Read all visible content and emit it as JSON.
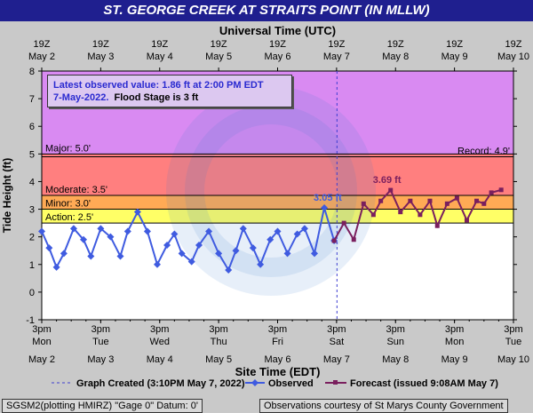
{
  "title": "ST. GEORGE CREEK AT STRAITS POINT (IN MLLW)",
  "top_axis_title": "Universal Time (UTC)",
  "bottom_axis_title": "Site Time (EDT)",
  "y_axis_title": "Tide Height (ft)",
  "info": {
    "line1": "Latest observed value: 1.86 ft at 2:00 PM EDT",
    "line2_a": "7-May-2022.",
    "line2_b": "Flood Stage is 3 ft"
  },
  "legend": {
    "created": "Graph Created (3:10PM May 7, 2022)",
    "observed": "Observed",
    "forecast": "Forecast (issued 9:08AM May 7)"
  },
  "footer": {
    "left": "SGSM2(plotting HMIRZ) \"Gage 0\" Datum: 0'",
    "right": "Observations courtesy of St Marys County Government"
  },
  "thresholds": [
    {
      "name": "Major",
      "label": "Major: 5.0'",
      "value": 5.0
    },
    {
      "name": "Record",
      "label": "Record: 4.9'",
      "value": 4.9
    },
    {
      "name": "Moderate",
      "label": "Moderate: 3.5'",
      "value": 3.5
    },
    {
      "name": "Minor",
      "label": "Minor: 3.0'",
      "value": 3.0
    },
    {
      "name": "Action",
      "label": "Action: 2.5'",
      "value": 2.5
    }
  ],
  "annotations": [
    {
      "text": "3.05 ft",
      "series": "Observed"
    },
    {
      "text": "3.69 ft",
      "series": "Forecast"
    }
  ],
  "colors": {
    "title_bg": "#1f1f8f",
    "major_band": "#d98af2",
    "moderate_band": "#ff7f7f",
    "minor_band": "#ffaa55",
    "action_band": "#ffff66",
    "normal_band": "#ffffff",
    "observed": "#3f5be0",
    "forecast": "#7a1f5e",
    "annotation_observed": "#3f5be0",
    "annotation_forecast": "#7a1f5e"
  },
  "chart_data": {
    "type": "line",
    "title": "ST. GEORGE CREEK AT STRAITS POINT (IN MLLW)",
    "xlabel": "Site Time (EDT)",
    "x2label": "Universal Time (UTC)",
    "ylabel": "Tide Height (ft)",
    "xlim": [
      "2022-05-02 15:00",
      "2022-05-10 15:00"
    ],
    "ylim": [
      -1,
      8
    ],
    "yticks": [
      -1,
      0,
      1,
      2,
      3,
      4,
      5,
      6,
      7,
      8
    ],
    "grid": false,
    "legend_position": "bottom",
    "bottom_ticks": [
      {
        "time": "3pm",
        "day": "Mon",
        "date": "May 2"
      },
      {
        "time": "3pm",
        "day": "Tue",
        "date": "May 3"
      },
      {
        "time": "3pm",
        "day": "Wed",
        "date": "May 4"
      },
      {
        "time": "3pm",
        "day": "Thu",
        "date": "May 5"
      },
      {
        "time": "3pm",
        "day": "Fri",
        "date": "May 6"
      },
      {
        "time": "3pm",
        "day": "Sat",
        "date": "May 7"
      },
      {
        "time": "3pm",
        "day": "Sun",
        "date": "May 8"
      },
      {
        "time": "3pm",
        "day": "Mon",
        "date": "May 9"
      },
      {
        "time": "3pm",
        "day": "Tue",
        "date": "May 10"
      }
    ],
    "top_ticks": [
      {
        "time": "19Z",
        "date": "May 2"
      },
      {
        "time": "19Z",
        "date": "May 3"
      },
      {
        "time": "19Z",
        "date": "May 4"
      },
      {
        "time": "19Z",
        "date": "May 5"
      },
      {
        "time": "19Z",
        "date": "May 6"
      },
      {
        "time": "19Z",
        "date": "May 7"
      },
      {
        "time": "19Z",
        "date": "May 8"
      },
      {
        "time": "19Z",
        "date": "May 9"
      },
      {
        "time": "19Z",
        "date": "May 10"
      }
    ],
    "created_marker": "2022-05-07 15:10",
    "series": [
      {
        "name": "Observed",
        "x": [
          "2022-05-02 15:00",
          "2022-05-02 18:00",
          "2022-05-02 21:00",
          "2022-05-03 00:00",
          "2022-05-03 04:00",
          "2022-05-03 08:00",
          "2022-05-03 11:00",
          "2022-05-03 15:00",
          "2022-05-03 19:00",
          "2022-05-03 23:00",
          "2022-05-04 02:00",
          "2022-05-04 06:00",
          "2022-05-04 10:00",
          "2022-05-04 14:00",
          "2022-05-04 18:00",
          "2022-05-04 21:00",
          "2022-05-05 00:00",
          "2022-05-05 04:00",
          "2022-05-05 07:00",
          "2022-05-05 11:00",
          "2022-05-05 15:00",
          "2022-05-05 19:00",
          "2022-05-05 22:00",
          "2022-05-06 01:00",
          "2022-05-06 05:00",
          "2022-05-06 08:00",
          "2022-05-06 12:00",
          "2022-05-06 15:00",
          "2022-05-06 19:00",
          "2022-05-06 23:00",
          "2022-05-07 02:00",
          "2022-05-07 06:00",
          "2022-05-07 10:00",
          "2022-05-07 14:00"
        ],
        "y": [
          2.2,
          1.6,
          0.9,
          1.4,
          2.3,
          1.9,
          1.3,
          2.3,
          2.0,
          1.3,
          2.2,
          2.9,
          2.2,
          1.0,
          1.7,
          2.1,
          1.4,
          1.1,
          1.7,
          2.2,
          1.4,
          0.8,
          1.5,
          2.3,
          1.6,
          1.0,
          1.9,
          2.2,
          1.4,
          2.1,
          2.3,
          1.4,
          3.05,
          1.86
        ]
      },
      {
        "name": "Forecast",
        "x": [
          "2022-05-07 14:00",
          "2022-05-07 18:00",
          "2022-05-07 22:00",
          "2022-05-08 02:00",
          "2022-05-08 06:00",
          "2022-05-08 09:00",
          "2022-05-08 13:00",
          "2022-05-08 17:00",
          "2022-05-08 21:00",
          "2022-05-09 01:00",
          "2022-05-09 05:00",
          "2022-05-09 08:00",
          "2022-05-09 12:00",
          "2022-05-09 16:00",
          "2022-05-09 20:00",
          "2022-05-10 00:00",
          "2022-05-10 03:00",
          "2022-05-10 06:00",
          "2022-05-10 10:00"
        ],
        "y": [
          1.86,
          2.5,
          1.9,
          3.2,
          2.8,
          3.3,
          3.69,
          2.9,
          3.3,
          2.8,
          3.3,
          2.4,
          3.2,
          3.4,
          2.6,
          3.3,
          3.2,
          3.6,
          3.7
        ]
      }
    ]
  }
}
